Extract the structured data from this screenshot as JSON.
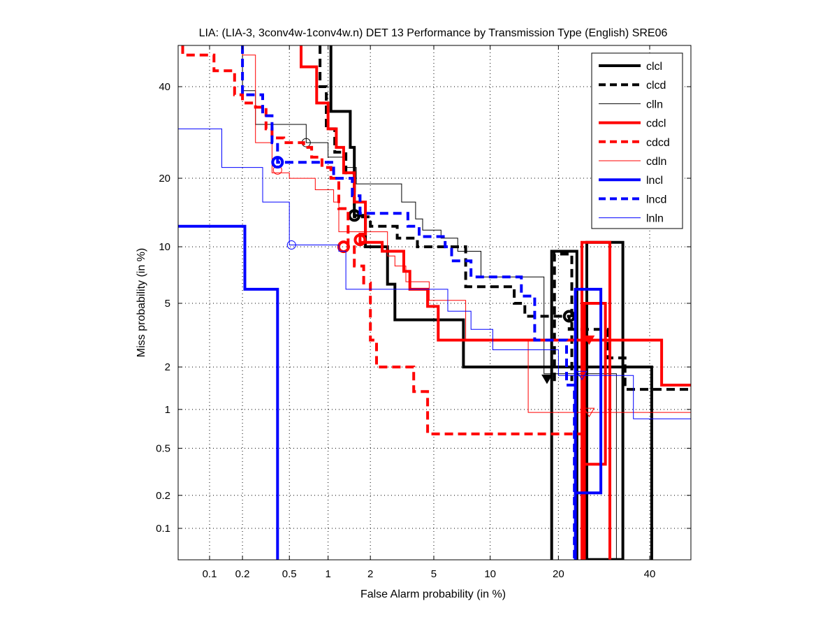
{
  "chart_data": {
    "type": "line",
    "subtype": "DET (probit-scaled axes)",
    "title": "LIA: (LIA-3, 3conv4w-1conv4w.n) DET 13 Performance by Transmission Type (English) SRE06",
    "xlabel": "False Alarm probability (in %)",
    "ylabel": "Miss probability (in %)",
    "xlim": [
      0.05,
      55
    ],
    "ylim": [
      0.05,
      53
    ],
    "xticks": [
      0.1,
      0.2,
      0.5,
      1,
      2,
      5,
      10,
      20,
      40
    ],
    "xtick_labels": [
      "0.1",
      "0.2",
      "0.5",
      "1",
      "2",
      "5",
      "10",
      "20",
      "40"
    ],
    "yticks": [
      0.1,
      0.2,
      0.5,
      1,
      2,
      5,
      10,
      20,
      40
    ],
    "ytick_labels": [
      "0.1",
      "0.2",
      "0.5",
      "1",
      "2",
      "5",
      "10",
      "20",
      "40"
    ],
    "grid": true,
    "legend_position": "top-right",
    "series": [
      {
        "name": "clcl",
        "color": "#000000",
        "style": "solid",
        "weight": "thick",
        "points": [
          [
            1.05,
            53
          ],
          [
            1.05,
            34
          ],
          [
            1.45,
            34
          ],
          [
            1.45,
            26
          ],
          [
            1.55,
            26
          ],
          [
            1.55,
            14
          ],
          [
            1.85,
            14
          ],
          [
            1.85,
            10
          ],
          [
            2.6,
            10
          ],
          [
            2.6,
            6.4
          ],
          [
            2.9,
            6.4
          ],
          [
            2.9,
            4.0
          ],
          [
            7.3,
            4.0
          ],
          [
            7.3,
            2.0
          ],
          [
            40.5,
            2.0
          ],
          [
            40.5,
            0.05
          ]
        ],
        "min_dcf": [
          1.55,
          14
        ],
        "extra_paths": [
          [
            [
              18.8,
              0.05
            ],
            [
              18.8,
              9.5
            ],
            [
              23.5,
              9.5
            ],
            [
              23.5,
              0.05
            ]
          ],
          [
            [
              25.5,
              0.05
            ],
            [
              25.5,
              10.5
            ],
            [
              33.5,
              10.5
            ],
            [
              33.5,
              0.05
            ],
            [
              25.5,
              0.05
            ]
          ]
        ]
      },
      {
        "name": "clcd",
        "color": "#000000",
        "style": "dashed",
        "weight": "thick",
        "points": [
          [
            0.87,
            53
          ],
          [
            0.87,
            40
          ],
          [
            0.97,
            40
          ],
          [
            0.97,
            30
          ],
          [
            1.12,
            30
          ],
          [
            1.12,
            25
          ],
          [
            1.35,
            25
          ],
          [
            1.35,
            21
          ],
          [
            1.55,
            21
          ],
          [
            1.55,
            13.8
          ],
          [
            2.0,
            13.8
          ],
          [
            2.0,
            12.5
          ],
          [
            3.0,
            12.5
          ],
          [
            3.0,
            11.0
          ],
          [
            4.0,
            11.0
          ],
          [
            4.0,
            10.0
          ],
          [
            7.5,
            10.0
          ],
          [
            7.5,
            6.2
          ],
          [
            13.0,
            6.2
          ],
          [
            13.0,
            5.0
          ],
          [
            14.5,
            5.0
          ],
          [
            14.5,
            4.2
          ],
          [
            22,
            4.2
          ],
          [
            22,
            3.5
          ],
          [
            30,
            3.5
          ],
          [
            30,
            2.3
          ],
          [
            34,
            2.3
          ],
          [
            34,
            1.4
          ],
          [
            55,
            1.4
          ]
        ],
        "min_dcf": [
          22,
          4.2
        ],
        "act_dcf": [
          18,
          1.65
        ],
        "extra_paths": [
          [
            [
              19.3,
              1.6
            ],
            [
              19.3,
              9.2
            ],
            [
              22.5,
              9.2
            ],
            [
              22.5,
              1.6
            ]
          ]
        ]
      },
      {
        "name": "clln",
        "color": "#000000",
        "style": "solid",
        "weight": "thin",
        "points": [
          [
            0.2,
            53
          ],
          [
            0.2,
            39
          ],
          [
            0.26,
            39
          ],
          [
            0.26,
            31
          ],
          [
            0.68,
            31
          ],
          [
            0.68,
            27
          ],
          [
            1.0,
            27
          ],
          [
            1.0,
            24
          ],
          [
            1.3,
            24
          ],
          [
            1.3,
            22
          ],
          [
            1.6,
            22
          ],
          [
            1.6,
            19
          ],
          [
            3.2,
            19
          ],
          [
            3.2,
            16
          ],
          [
            3.9,
            16
          ],
          [
            3.9,
            13.5
          ],
          [
            4.3,
            13.5
          ],
          [
            4.3,
            12.0
          ],
          [
            5.5,
            12.0
          ],
          [
            5.5,
            11.0
          ],
          [
            6.8,
            11.0
          ],
          [
            6.8,
            9.5
          ],
          [
            9.0,
            9.5
          ],
          [
            9.0,
            7.0
          ],
          [
            17.5,
            7.0
          ],
          [
            17.5,
            1.8
          ],
          [
            32,
            1.8
          ],
          [
            32,
            0.05
          ]
        ],
        "min_dcf": [
          0.68,
          27
        ]
      },
      {
        "name": "cdcl",
        "color": "#ff0000",
        "style": "solid",
        "weight": "thick",
        "points": [
          [
            0.62,
            53
          ],
          [
            0.62,
            45
          ],
          [
            0.82,
            45
          ],
          [
            0.82,
            36
          ],
          [
            1.0,
            36
          ],
          [
            1.0,
            30
          ],
          [
            1.15,
            30
          ],
          [
            1.15,
            26
          ],
          [
            1.3,
            26
          ],
          [
            1.3,
            21
          ],
          [
            1.55,
            21
          ],
          [
            1.55,
            16
          ],
          [
            1.85,
            16
          ],
          [
            1.85,
            11.5
          ],
          [
            1.7,
            11.5
          ],
          [
            1.7,
            10.5
          ],
          [
            2.4,
            10.5
          ],
          [
            2.4,
            9.5
          ],
          [
            3.3,
            9.5
          ],
          [
            3.3,
            7.5
          ],
          [
            3.6,
            7.5
          ],
          [
            3.6,
            6.0
          ],
          [
            4.6,
            6.0
          ],
          [
            4.6,
            4.8
          ],
          [
            5.3,
            4.8
          ],
          [
            5.3,
            3.0
          ],
          [
            43,
            3.0
          ],
          [
            43,
            1.5
          ],
          [
            55,
            1.5
          ]
        ],
        "min_dcf": [
          1.7,
          10.8
        ],
        "act_dcf": [
          26,
          3.0
        ],
        "extra_paths": [
          [
            [
              24.5,
              0.05
            ],
            [
              24.5,
              10.5
            ],
            [
              30.5,
              10.5
            ],
            [
              30.5,
              0.05
            ]
          ],
          [
            [
              25.0,
              0.05
            ],
            [
              25.0,
              0.37
            ],
            [
              29.5,
              0.37
            ],
            [
              29.5,
              5.0
            ],
            [
              25.0,
              5.0
            ],
            [
              25.0,
              0.37
            ]
          ]
        ]
      },
      {
        "name": "cdcd",
        "color": "#ff0000",
        "style": "dashed",
        "weight": "thick",
        "points": [
          [
            0.055,
            53
          ],
          [
            0.055,
            48
          ],
          [
            0.11,
            48
          ],
          [
            0.11,
            44
          ],
          [
            0.17,
            44
          ],
          [
            0.17,
            38
          ],
          [
            0.2,
            38
          ],
          [
            0.2,
            36
          ],
          [
            0.26,
            36
          ],
          [
            0.26,
            35
          ],
          [
            0.32,
            35
          ],
          [
            0.32,
            30
          ],
          [
            0.36,
            30
          ],
          [
            0.36,
            28
          ],
          [
            0.45,
            28
          ],
          [
            0.45,
            27
          ],
          [
            0.65,
            27
          ],
          [
            0.65,
            26
          ],
          [
            0.75,
            26
          ],
          [
            0.75,
            24
          ],
          [
            0.9,
            24
          ],
          [
            0.9,
            22
          ],
          [
            1.05,
            22
          ],
          [
            1.05,
            20
          ],
          [
            1.2,
            20
          ],
          [
            1.2,
            15
          ],
          [
            1.4,
            15
          ],
          [
            1.4,
            10
          ],
          [
            1.55,
            10
          ],
          [
            1.55,
            8.0
          ],
          [
            1.8,
            8.0
          ],
          [
            1.8,
            6.5
          ],
          [
            2.0,
            6.5
          ],
          [
            2.0,
            3.0
          ],
          [
            2.2,
            3.0
          ],
          [
            2.2,
            2.0
          ],
          [
            3.8,
            2.0
          ],
          [
            3.8,
            1.35
          ],
          [
            4.6,
            1.35
          ],
          [
            4.6,
            0.65
          ],
          [
            25,
            0.65
          ],
          [
            25,
            0.05
          ]
        ],
        "min_dcf": [
          1.3,
          10
        ]
      },
      {
        "name": "cdln",
        "color": "#ff0000",
        "style": "solid",
        "weight": "thin",
        "points": [
          [
            0.05,
            53
          ],
          [
            0.2,
            53
          ],
          [
            0.2,
            48
          ],
          [
            0.26,
            48
          ],
          [
            0.26,
            27
          ],
          [
            0.36,
            27
          ],
          [
            0.36,
            21
          ],
          [
            0.5,
            21
          ],
          [
            0.5,
            20
          ],
          [
            0.8,
            20
          ],
          [
            0.8,
            18
          ],
          [
            1.1,
            18
          ],
          [
            1.1,
            16
          ],
          [
            1.2,
            16
          ],
          [
            1.2,
            11.8
          ],
          [
            2.6,
            11.8
          ],
          [
            2.6,
            9.0
          ],
          [
            2.9,
            9.0
          ],
          [
            2.9,
            8.0
          ],
          [
            3.4,
            8.0
          ],
          [
            3.4,
            6.6
          ],
          [
            4.7,
            6.6
          ],
          [
            4.7,
            5.2
          ],
          [
            7.5,
            5.2
          ],
          [
            7.5,
            3.0
          ],
          [
            15,
            3.0
          ],
          [
            15,
            0.95
          ],
          [
            55,
            0.95
          ]
        ],
        "min_dcf": [
          0.4,
          21.5
        ],
        "act_dcf": [
          26,
          0.95
        ]
      },
      {
        "name": "lncl",
        "color": "#0000ff",
        "style": "solid",
        "weight": "thick",
        "points": [
          [
            0.05,
            12.5
          ],
          [
            0.21,
            12.5
          ],
          [
            0.21,
            6.0
          ],
          [
            0.4,
            6.0
          ],
          [
            0.4,
            0.05
          ]
        ],
        "extra_paths": [
          [
            [
              23.2,
              0.05
            ],
            [
              23.2,
              0.21
            ],
            [
              28.5,
              0.21
            ],
            [
              28.5,
              6.0
            ],
            [
              23.2,
              6.0
            ],
            [
              23.2,
              0.21
            ]
          ]
        ]
      },
      {
        "name": "lncd",
        "color": "#0000ff",
        "style": "dashed",
        "weight": "thick",
        "points": [
          [
            0.2,
            53
          ],
          [
            0.2,
            38
          ],
          [
            0.3,
            38
          ],
          [
            0.3,
            33
          ],
          [
            0.36,
            33
          ],
          [
            0.36,
            27
          ],
          [
            0.4,
            27
          ],
          [
            0.4,
            23
          ],
          [
            1.1,
            23
          ],
          [
            1.1,
            20
          ],
          [
            1.5,
            20
          ],
          [
            1.5,
            17
          ],
          [
            1.7,
            17
          ],
          [
            1.7,
            14.3
          ],
          [
            3.5,
            14.3
          ],
          [
            3.5,
            12.5
          ],
          [
            4.1,
            12.5
          ],
          [
            4.1,
            11.2
          ],
          [
            5.8,
            11.2
          ],
          [
            5.8,
            10.0
          ],
          [
            6.3,
            10.0
          ],
          [
            6.3,
            8.5
          ],
          [
            8.0,
            8.5
          ],
          [
            8.0,
            7.0
          ],
          [
            14,
            7.0
          ],
          [
            14,
            5.5
          ],
          [
            16,
            5.5
          ],
          [
            16,
            3.0
          ],
          [
            21.5,
            3.0
          ],
          [
            21.5,
            1.5
          ],
          [
            23,
            1.5
          ],
          [
            23,
            0.05
          ]
        ],
        "min_dcf": [
          0.4,
          23
        ]
      },
      {
        "name": "lnln",
        "color": "#0000ff",
        "style": "solid",
        "weight": "thin",
        "points": [
          [
            0.05,
            30
          ],
          [
            0.13,
            30
          ],
          [
            0.13,
            22
          ],
          [
            0.3,
            22
          ],
          [
            0.3,
            16
          ],
          [
            0.5,
            16
          ],
          [
            0.5,
            10.2
          ],
          [
            1.2,
            10.2
          ],
          [
            1.2,
            9.5
          ],
          [
            1.35,
            9.5
          ],
          [
            1.35,
            6.0
          ],
          [
            6.0,
            6.0
          ],
          [
            6.0,
            4.5
          ],
          [
            8.0,
            4.5
          ],
          [
            8.0,
            3.5
          ],
          [
            10.3,
            3.5
          ],
          [
            10.3,
            2.6
          ],
          [
            20,
            2.6
          ],
          [
            20,
            1.75
          ],
          [
            36,
            1.75
          ],
          [
            36,
            0.85
          ],
          [
            55,
            0.85
          ]
        ],
        "min_dcf": [
          0.52,
          10.2
        ],
        "act_dcf": [
          24.5,
          1.75
        ]
      }
    ]
  }
}
